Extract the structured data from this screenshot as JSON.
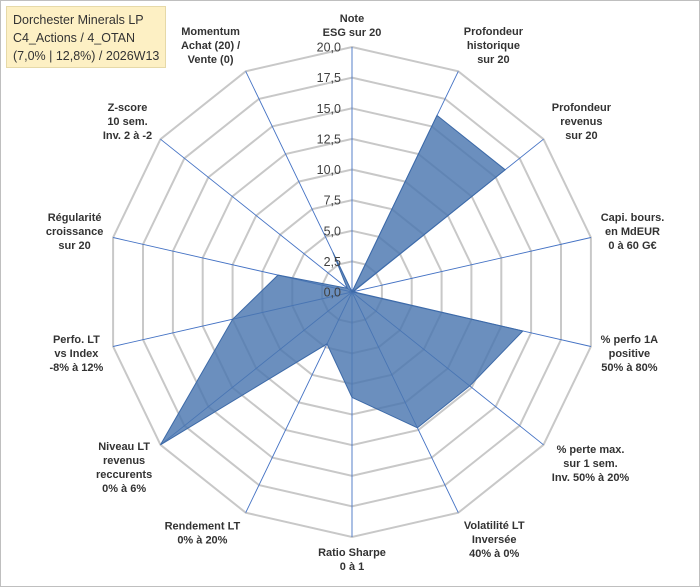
{
  "title_box": {
    "line1": "Dorchester Minerals LP",
    "line2": "C4_Actions / 4_OTAN",
    "line3": "(7,0% | 12,8%) / 2026W13"
  },
  "chart_data": {
    "type": "radar",
    "title": "Dorchester Minerals LP C4_Actions / 4_OTAN (7,0% | 12,8%) / 2026W13",
    "rmin": 0,
    "rmax": 20,
    "tick_step": 2.5,
    "tick_labels": [
      "0,0",
      "2,5",
      "5,0",
      "7,5",
      "10,0",
      "12,5",
      "15,0",
      "17,5",
      "20,0"
    ],
    "axes": [
      {
        "lines": [
          "Note",
          "ESG sur 20"
        ],
        "value": 0
      },
      {
        "lines": [
          "Profondeur",
          "historique",
          "sur 20"
        ],
        "value": 16
      },
      {
        "lines": [
          "Profondeur",
          "revenus",
          "sur 20"
        ],
        "value": 16
      },
      {
        "lines": [
          "Capi. bours.",
          "en MdEUR",
          "0 à 60 G€"
        ],
        "value": 0.1
      },
      {
        "lines": [
          "% perfo 1A",
          "positive",
          "50% à 80%"
        ],
        "value": 14.3
      },
      {
        "lines": [
          "% perte max.",
          "sur 1 sem.",
          "Inv. 50% à 20%"
        ],
        "value": 12.3
      },
      {
        "lines": [
          "Volatilité LT",
          "Inversée",
          "40% à 0%"
        ],
        "value": 12.3
      },
      {
        "lines": [
          "Ratio Sharpe",
          "0 à 1"
        ],
        "value": 8.6
      },
      {
        "lines": [
          "Rendement LT",
          "0% à 20%"
        ],
        "value": 4.7
      },
      {
        "lines": [
          "Niveau LT",
          "revenus",
          "reccurents",
          "0% à 6%"
        ],
        "value": 20
      },
      {
        "lines": [
          "Perfo. LT",
          "vs Index",
          "-8% à 12%"
        ],
        "value": 10
      },
      {
        "lines": [
          "Régularité",
          "croissance",
          "sur 20"
        ],
        "value": 6.2
      },
      {
        "lines": [
          "Z-score",
          "10 sem.",
          "Inv. 2 à -2"
        ],
        "value": 0.5
      },
      {
        "lines": [
          "Momentum",
          "Achat (20) /",
          "Vente (0)"
        ],
        "value": 3.6
      }
    ],
    "colors": {
      "fill": "#4a76b0",
      "stroke": "#3d6aa8",
      "grid": "#c8c8c8",
      "spoke": "#4472c4"
    }
  }
}
